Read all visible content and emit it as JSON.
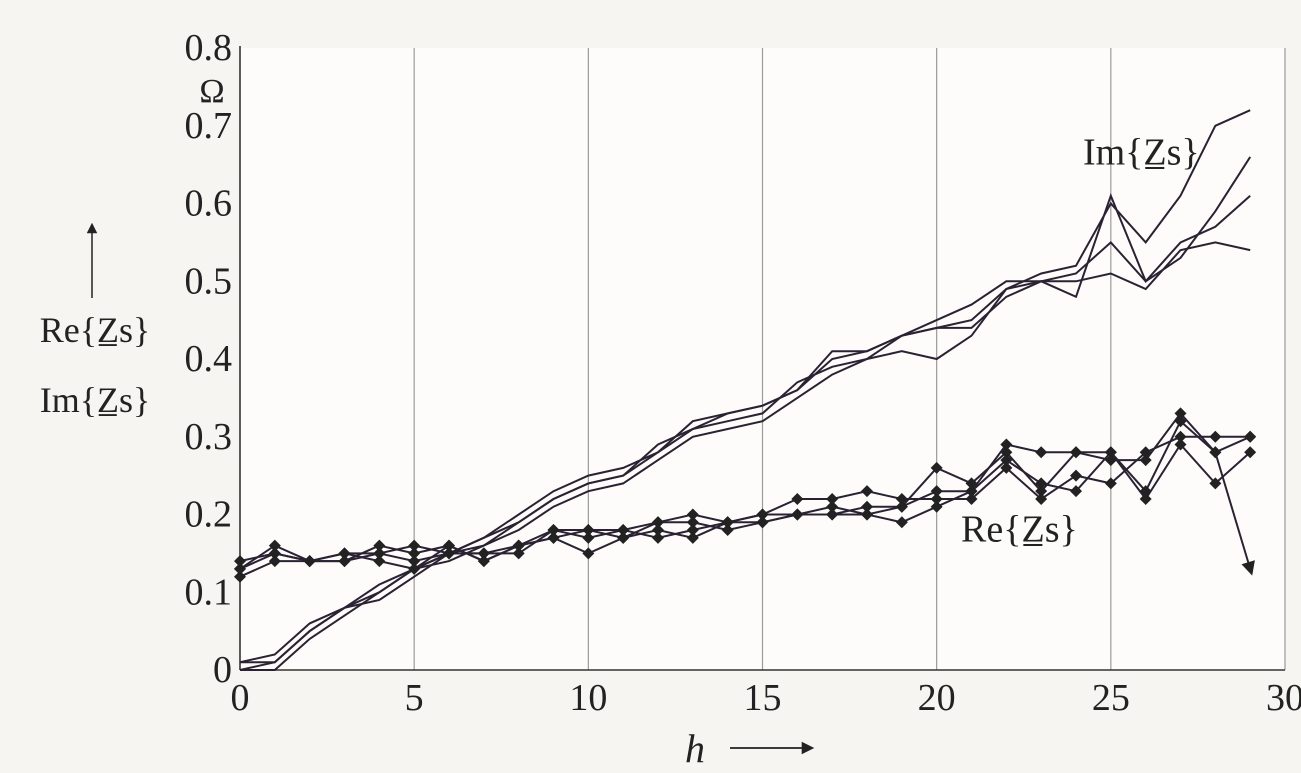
{
  "chart_data": {
    "type": "line",
    "title": "",
    "xlabel": "h",
    "ylabel_lines": [
      "Re{Z̲s}",
      "Im{Z̲s}"
    ],
    "yunit": "Ω",
    "xlim": [
      0,
      30
    ],
    "ylim": [
      0,
      0.8
    ],
    "xticks": [
      "0",
      "5",
      "10",
      "15",
      "20",
      "25",
      "30"
    ],
    "yticks": [
      "0",
      "0.1",
      "0.2",
      "0.3",
      "0.4",
      "0.5",
      "0.6",
      "0.7",
      "0.8"
    ],
    "grid": true,
    "annotations": [
      {
        "text": "Im{Z̲s}",
        "x": 24.2,
        "y": 0.65
      },
      {
        "text": "Re{Z̲s}",
        "x": 20.7,
        "y": 0.165
      }
    ],
    "series": [
      {
        "group": "Im",
        "marker": "none",
        "x": [
          0,
          1,
          2,
          3,
          4,
          5,
          6,
          7,
          8,
          9,
          10,
          11,
          12,
          13,
          14,
          15,
          16,
          17,
          18,
          19,
          20,
          21,
          22,
          23,
          24,
          25,
          26,
          27,
          28,
          29
        ],
        "values": [
          0.0,
          0.01,
          0.05,
          0.08,
          0.1,
          0.13,
          0.15,
          0.17,
          0.19,
          0.22,
          0.24,
          0.25,
          0.28,
          0.31,
          0.33,
          0.34,
          0.36,
          0.4,
          0.41,
          0.43,
          0.44,
          0.45,
          0.49,
          0.51,
          0.52,
          0.6,
          0.55,
          0.61,
          0.7,
          0.72
        ]
      },
      {
        "group": "Im",
        "marker": "none",
        "x": [
          0,
          1,
          2,
          3,
          4,
          5,
          6,
          7,
          8,
          9,
          10,
          11,
          12,
          13,
          14,
          15,
          16,
          17,
          18,
          19,
          20,
          21,
          22,
          23,
          24,
          25,
          26,
          27,
          28,
          29
        ],
        "values": [
          0.01,
          0.02,
          0.06,
          0.08,
          0.09,
          0.12,
          0.15,
          0.17,
          0.2,
          0.23,
          0.25,
          0.26,
          0.28,
          0.32,
          0.33,
          0.34,
          0.36,
          0.41,
          0.41,
          0.43,
          0.45,
          0.47,
          0.5,
          0.5,
          0.48,
          0.61,
          0.5,
          0.55,
          0.57,
          0.61
        ]
      },
      {
        "group": "Im",
        "marker": "none",
        "x": [
          0,
          1,
          2,
          3,
          4,
          5,
          6,
          7,
          8,
          9,
          10,
          11,
          12,
          13,
          14,
          15,
          16,
          17,
          18,
          19,
          20,
          21,
          22,
          23,
          24,
          25,
          26,
          27,
          28,
          29
        ],
        "values": [
          0.0,
          0.0,
          0.04,
          0.07,
          0.1,
          0.13,
          0.14,
          0.16,
          0.18,
          0.21,
          0.23,
          0.24,
          0.27,
          0.3,
          0.31,
          0.32,
          0.35,
          0.38,
          0.4,
          0.41,
          0.4,
          0.43,
          0.49,
          0.5,
          0.5,
          0.51,
          0.49,
          0.54,
          0.55,
          0.54
        ]
      },
      {
        "group": "Im",
        "marker": "none",
        "x": [
          0,
          1,
          2,
          3,
          4,
          5,
          6,
          7,
          8,
          9,
          10,
          11,
          12,
          13,
          14,
          15,
          16,
          17,
          18,
          19,
          20,
          21,
          22,
          23,
          24,
          25,
          26,
          27,
          28,
          29
        ],
        "values": [
          0.01,
          0.01,
          0.05,
          0.08,
          0.11,
          0.13,
          0.15,
          0.16,
          0.19,
          0.22,
          0.24,
          0.25,
          0.29,
          0.31,
          0.32,
          0.33,
          0.37,
          0.39,
          0.4,
          0.43,
          0.44,
          0.44,
          0.48,
          0.5,
          0.51,
          0.55,
          0.5,
          0.53,
          0.59,
          0.66
        ]
      },
      {
        "group": "Re",
        "marker": "diamond",
        "x": [
          0,
          1,
          2,
          3,
          4,
          5,
          6,
          7,
          8,
          9,
          10,
          11,
          12,
          13,
          14,
          15,
          16,
          17,
          18,
          19,
          20,
          21,
          22,
          23,
          24,
          25,
          26,
          27,
          28,
          29
        ],
        "values": [
          0.13,
          0.16,
          0.14,
          0.14,
          0.16,
          0.15,
          0.16,
          0.14,
          0.16,
          0.17,
          0.18,
          0.17,
          0.19,
          0.19,
          0.18,
          0.19,
          0.2,
          0.2,
          0.21,
          0.21,
          0.26,
          0.24,
          0.28,
          0.23,
          0.28,
          0.27,
          0.27,
          0.33,
          0.28,
          0.3
        ]
      },
      {
        "group": "Re",
        "marker": "diamond",
        "x": [
          0,
          1,
          2,
          3,
          4,
          5,
          6,
          7,
          8,
          9,
          10,
          11,
          12,
          13,
          14,
          15,
          16,
          17,
          18,
          19,
          20,
          21,
          22,
          23,
          24,
          25,
          26,
          27,
          28,
          29
        ],
        "values": [
          0.14,
          0.15,
          0.14,
          0.15,
          0.15,
          0.14,
          0.15,
          0.15,
          0.16,
          0.18,
          0.17,
          0.18,
          0.17,
          0.18,
          0.19,
          0.2,
          0.22,
          0.22,
          0.23,
          0.22,
          0.22,
          0.22,
          0.26,
          0.22,
          0.25,
          0.24,
          0.28,
          0.3,
          0.3,
          0.3
        ]
      },
      {
        "group": "Re",
        "marker": "diamond",
        "x": [
          0,
          1,
          2,
          3,
          4,
          5,
          6,
          7,
          8,
          9,
          10,
          11,
          12,
          13,
          14,
          15,
          16,
          17,
          18,
          19,
          20,
          21,
          22,
          23,
          24,
          25,
          26,
          27,
          28,
          29
        ],
        "values": [
          0.12,
          0.14,
          0.14,
          0.15,
          0.14,
          0.13,
          0.16,
          0.14,
          0.16,
          0.17,
          0.15,
          0.17,
          0.18,
          0.17,
          0.19,
          0.19,
          0.2,
          0.21,
          0.2,
          0.21,
          0.23,
          0.23,
          0.27,
          0.24,
          0.23,
          0.28,
          0.22,
          0.29,
          0.24,
          0.28
        ]
      },
      {
        "group": "Re",
        "marker": "diamond",
        "x": [
          0,
          1,
          2,
          3,
          4,
          5,
          6,
          7,
          8,
          9,
          10,
          11,
          12,
          13,
          14,
          15,
          16,
          17,
          18,
          19,
          20,
          21,
          22,
          23,
          24,
          25,
          26,
          27,
          28,
          29
        ],
        "values": [
          0.13,
          0.15,
          0.14,
          0.14,
          0.15,
          0.16,
          0.15,
          0.15,
          0.15,
          0.18,
          0.18,
          0.18,
          0.19,
          0.2,
          0.19,
          0.2,
          0.2,
          0.2,
          0.2,
          0.19,
          0.21,
          0.23,
          0.29,
          0.28,
          0.28,
          0.28,
          0.23,
          0.32,
          0.28,
          0.13
        ]
      }
    ]
  }
}
